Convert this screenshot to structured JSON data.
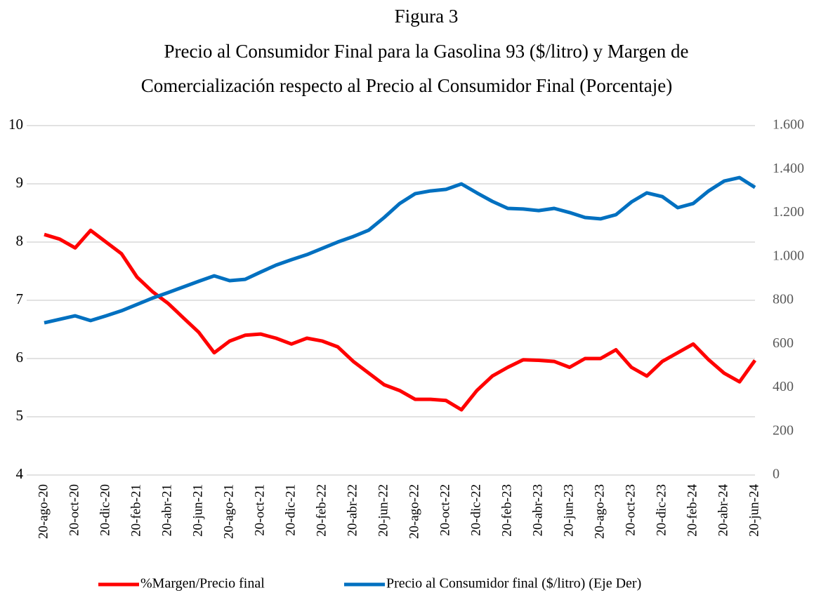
{
  "chart_data": {
    "type": "line",
    "title": "Figura 3",
    "subtitle": [
      "Precio al Consumidor Final para la Gasolina 93 ($/litro) y Margen de",
      "Comercialización respecto al Precio al Consumidor Final (Porcentaje)"
    ],
    "categories": [
      "20-ago-20",
      null,
      "20-oct-20",
      null,
      "20-dic-20",
      null,
      "20-feb-21",
      null,
      "20-abr-21",
      null,
      "20-jun-21",
      null,
      "20-ago-21",
      null,
      "20-oct-21",
      null,
      "20-dic-21",
      null,
      "20-feb-22",
      null,
      "20-abr-22",
      null,
      "20-jun-22",
      null,
      "20-ago-22",
      null,
      "20-oct-22",
      null,
      "20-dic-22",
      null,
      "20-feb-23",
      null,
      "20-abr-23",
      null,
      "20-jun-23",
      null,
      "20-ago-23",
      null,
      "20-oct-23",
      null,
      "20-dic-23",
      null,
      "20-feb-24",
      null,
      "20-abr-24",
      null,
      "20-jun-24"
    ],
    "series": [
      {
        "name": "%Margen/Precio final",
        "color": "#ff0000",
        "axis": "y",
        "values": [
          8.13,
          8.05,
          7.9,
          8.2,
          8.0,
          7.8,
          7.4,
          7.15,
          6.95,
          6.7,
          6.45,
          6.1,
          6.3,
          6.4,
          6.42,
          6.35,
          6.25,
          6.35,
          6.3,
          6.2,
          5.95,
          5.75,
          5.55,
          5.45,
          5.3,
          5.3,
          5.28,
          5.12,
          5.45,
          5.7,
          5.85,
          5.98,
          5.97,
          5.95,
          5.85,
          6.0,
          6.0,
          6.15,
          5.85,
          5.7,
          5.95,
          6.1,
          6.25,
          5.98,
          5.75,
          5.6,
          5.97
        ]
      },
      {
        "name": "Precio al Consumidor final ($/litro) (Eje Der)",
        "color": "#0070c0",
        "axis": "y2",
        "values": [
          697,
          713,
          729,
          707,
          729,
          752,
          781,
          810,
          835,
          861,
          887,
          912,
          890,
          896,
          929,
          961,
          986,
          1009,
          1038,
          1067,
          1092,
          1121,
          1179,
          1243,
          1288,
          1301,
          1308,
          1333,
          1292,
          1253,
          1221,
          1218,
          1211,
          1221,
          1202,
          1179,
          1173,
          1192,
          1250,
          1292,
          1275,
          1224,
          1243,
          1301,
          1346,
          1362,
          1317
        ]
      }
    ],
    "ylim": [
      4,
      10
    ],
    "yticks": [
      4,
      5,
      6,
      7,
      8,
      9,
      10
    ],
    "y2lim": [
      0,
      1600
    ],
    "y2ticks": [
      0,
      200,
      400,
      600,
      800,
      {
        "value": 1000,
        "label": "1.000"
      },
      {
        "value": 1200,
        "label": "1.200"
      },
      {
        "value": 1400,
        "label": "1.400"
      },
      {
        "value": 1600,
        "label": "1.600"
      }
    ],
    "grid": true,
    "legend": "bottom"
  }
}
